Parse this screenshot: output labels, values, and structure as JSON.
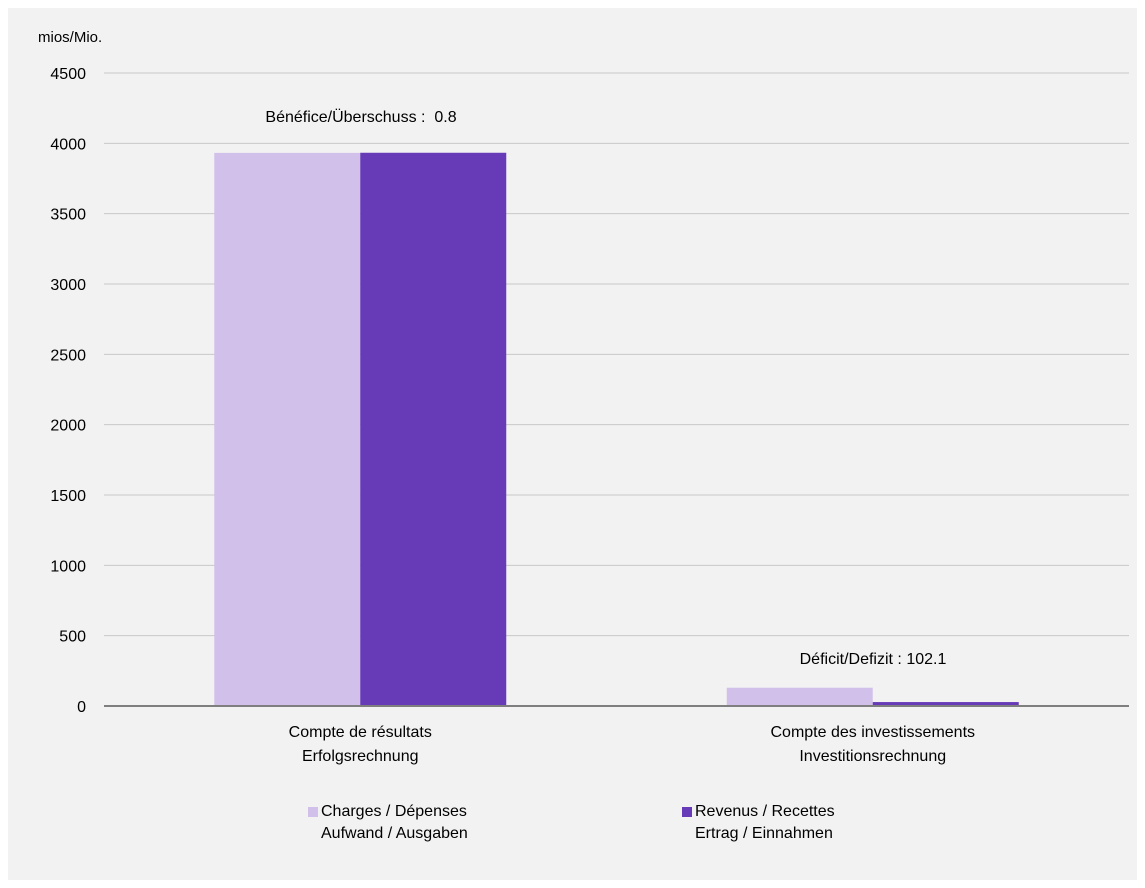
{
  "chart_data": {
    "type": "bar",
    "unit_label": "mios/Mio.",
    "categories": [
      [
        "Compte de résultats",
        "Erfolgsrechnung"
      ],
      [
        "Compte des investissements",
        "Investitionsrechnung"
      ]
    ],
    "series": [
      {
        "name": [
          "Charges / Dépenses",
          "Aufwand / Ausgaben"
        ],
        "color": "#d1c1ea",
        "values": [
          3932,
          130
        ]
      },
      {
        "name": [
          "Revenus / Recettes",
          "Ertrag / Einnahmen"
        ],
        "color": "#673ab7",
        "values": [
          3933,
          28
        ]
      }
    ],
    "annotations": [
      "Bénéfice/Überschuss :  0.8",
      "Déficit/Defizit : 102.1"
    ],
    "ylim": [
      0,
      4500
    ],
    "yticks": [
      0,
      500,
      1000,
      1500,
      2000,
      2500,
      3000,
      3500,
      4000,
      4500
    ],
    "grid": true,
    "legend_position": "bottom"
  }
}
